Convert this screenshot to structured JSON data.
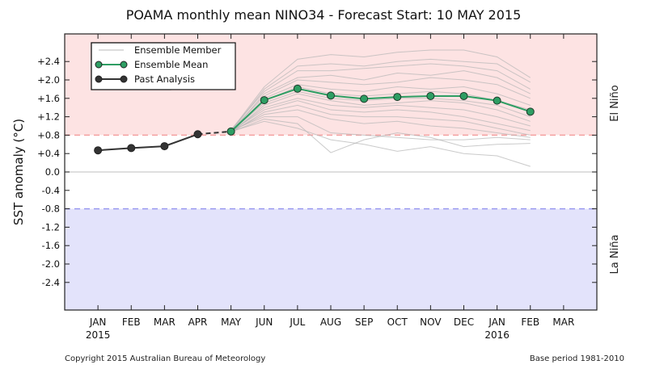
{
  "chart_data": {
    "type": "line",
    "title": "POAMA monthly mean NINO34 - Forecast Start: 10 MAY 2015",
    "ylabel": "SST anomaly (°C)",
    "xlabel": "",
    "ylim": [
      -3.0,
      3.0
    ],
    "xlim_months": [
      "DEC 2014",
      "APR 2016"
    ],
    "x_ticks": [
      "JAN",
      "FEB",
      "MAR",
      "APR",
      "MAY",
      "JUN",
      "JUL",
      "AUG",
      "SEP",
      "OCT",
      "NOV",
      "DEC",
      "JAN",
      "FEB",
      "MAR"
    ],
    "x_year_labels": [
      {
        "month_index": 0,
        "label": "2015"
      },
      {
        "month_index": 12,
        "label": "2016"
      }
    ],
    "y_ticks": [
      "+2.4",
      "+2.0",
      "+1.6",
      "+1.2",
      "+0.8",
      "+0.4",
      "0.0",
      "-0.4",
      "-0.8",
      "-1.2",
      "-1.6",
      "-2.0",
      "-2.4"
    ],
    "y_tick_values": [
      2.4,
      2.0,
      1.6,
      1.2,
      0.8,
      0.4,
      0.0,
      -0.4,
      -0.8,
      -1.2,
      -1.6,
      -2.0,
      -2.4
    ],
    "thresholds": {
      "el_nino": 0.8,
      "la_nina": -0.8
    },
    "regions": {
      "el_nino_label": "El Niño",
      "la_nina_label": "La Niña"
    },
    "grid": false,
    "legend_placement": "top-left",
    "legend": [
      "Ensemble Member",
      "Ensemble Mean",
      "Past Analysis"
    ],
    "colors": {
      "el_nino_fill": "#fde3e3",
      "la_nina_fill": "#e3e3fb",
      "el_nino_line": "#f4a0a0",
      "la_nina_line": "#9a9af0",
      "mean": "#2e9e63",
      "past": "#333333",
      "member": "#b8b8b8"
    },
    "past_analysis": {
      "months": [
        "JAN",
        "FEB",
        "MAR",
        "APR"
      ],
      "values": [
        0.47,
        0.52,
        0.56,
        0.82
      ]
    },
    "ensemble_mean": {
      "months": [
        "MAY",
        "JUN",
        "JUL",
        "AUG",
        "SEP",
        "OCT",
        "NOV",
        "DEC",
        "JAN",
        "FEB"
      ],
      "values": [
        0.88,
        1.56,
        1.81,
        1.66,
        1.59,
        1.63,
        1.65,
        1.65,
        1.55,
        1.31
      ]
    },
    "ensemble_members": {
      "months": [
        "MAY",
        "JUN",
        "JUL",
        "AUG",
        "SEP",
        "OCT",
        "NOV",
        "DEC",
        "JAN",
        "FEB"
      ],
      "series": [
        [
          0.9,
          1.85,
          2.45,
          2.55,
          2.5,
          2.6,
          2.65,
          2.65,
          2.5,
          2.05
        ],
        [
          0.88,
          1.8,
          2.3,
          2.35,
          2.3,
          2.4,
          2.45,
          2.4,
          2.35,
          1.95
        ],
        [
          0.92,
          1.75,
          2.2,
          2.2,
          2.25,
          2.3,
          2.35,
          2.3,
          2.2,
          1.8
        ],
        [
          0.87,
          1.7,
          2.05,
          2.1,
          2.0,
          2.15,
          2.1,
          2.2,
          2.05,
          1.7
        ],
        [
          0.89,
          1.65,
          2.0,
          1.95,
          1.9,
          1.95,
          2.05,
          2.0,
          1.9,
          1.6
        ],
        [
          0.86,
          1.6,
          1.9,
          1.8,
          1.75,
          1.85,
          1.8,
          1.85,
          1.7,
          1.45
        ],
        [
          0.9,
          1.55,
          1.85,
          1.7,
          1.65,
          1.7,
          1.75,
          1.7,
          1.55,
          1.35
        ],
        [
          0.88,
          1.5,
          1.75,
          1.6,
          1.55,
          1.6,
          1.6,
          1.55,
          1.45,
          1.2
        ],
        [
          0.85,
          1.45,
          1.7,
          1.55,
          1.45,
          1.5,
          1.55,
          1.5,
          1.35,
          1.1
        ],
        [
          0.87,
          1.4,
          1.6,
          1.45,
          1.4,
          1.45,
          1.4,
          1.35,
          1.2,
          1.0
        ],
        [
          0.89,
          1.35,
          1.55,
          1.35,
          1.3,
          1.35,
          1.3,
          1.2,
          1.05,
          0.9
        ],
        [
          0.86,
          1.3,
          1.45,
          1.25,
          1.2,
          1.2,
          1.15,
          1.1,
          0.95,
          0.8
        ],
        [
          0.88,
          1.25,
          1.35,
          1.15,
          1.05,
          1.1,
          1.0,
          0.95,
          0.85,
          0.75
        ],
        [
          0.9,
          1.2,
          1.2,
          0.85,
          0.8,
          0.75,
          0.7,
          0.7,
          0.75,
          0.7
        ],
        [
          0.87,
          1.15,
          1.05,
          0.42,
          0.7,
          0.85,
          0.75,
          0.55,
          0.6,
          0.62
        ],
        [
          0.88,
          1.1,
          0.95,
          0.7,
          0.6,
          0.45,
          0.55,
          0.4,
          0.35,
          0.12
        ]
      ]
    }
  },
  "footer": {
    "copyright": "Copyright 2015 Australian Bureau of Meteorology",
    "base_period": "Base period 1981-2010"
  }
}
